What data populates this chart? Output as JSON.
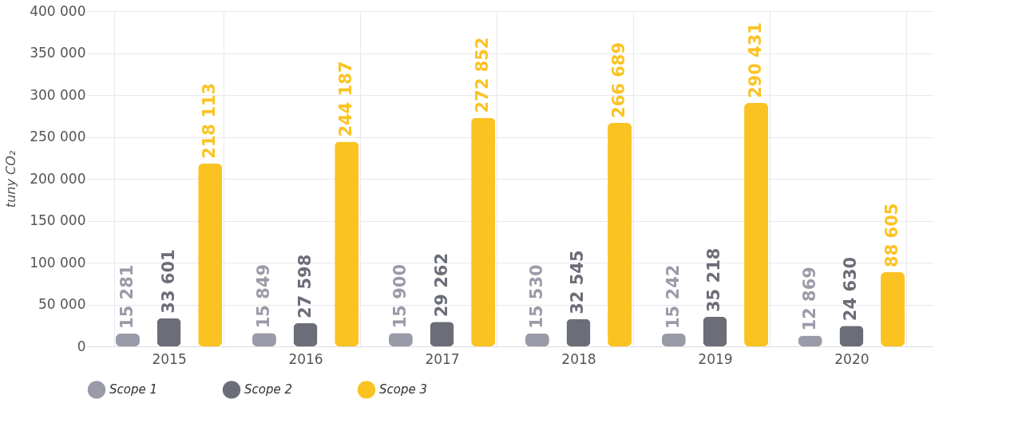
{
  "chart_data": {
    "type": "bar",
    "ylabel": "tuny CO₂",
    "categories": [
      "2015",
      "2016",
      "2017",
      "2018",
      "2019",
      "2020"
    ],
    "series": [
      {
        "name": "Scope 1",
        "color": "#9a9ba8",
        "values": [
          15281,
          15849,
          15900,
          15530,
          15242,
          12869
        ]
      },
      {
        "name": "Scope 2",
        "color": "#6b6d78",
        "values": [
          33601,
          27598,
          29262,
          32545,
          35218,
          24630
        ]
      },
      {
        "name": "Scope 3",
        "color": "#fbc322",
        "values": [
          218113,
          244187,
          272852,
          266689,
          290431,
          88605
        ]
      }
    ],
    "ylim": [
      0,
      400000
    ],
    "yticks": [
      0,
      50000,
      100000,
      150000,
      200000,
      250000,
      300000,
      350000,
      400000
    ],
    "grid": true,
    "legend": "bottom",
    "data_labels": true
  }
}
